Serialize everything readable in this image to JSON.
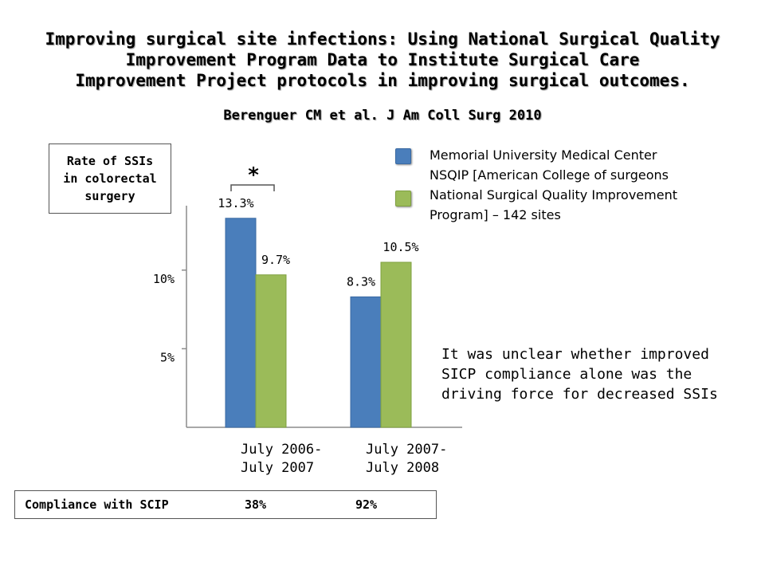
{
  "title": {
    "lines": [
      "Improving surgical site infections: Using National Surgical Quality",
      "Improvement Program Data to Institute Surgical Care",
      "Improvement Project protocols in improving surgical outcomes."
    ],
    "citation": "Berenguer CM et al. J Am Coll Surg 2010"
  },
  "y_axis_box": {
    "lines": [
      "Rate of SSIs",
      "in colorectal",
      "surgery"
    ]
  },
  "legend": {
    "entries": [
      {
        "lines": [
          "Memorial University Medical Center"
        ],
        "color": "#4a7ebb"
      },
      {
        "lines": [
          "NSQIP  [American College of surgeons",
          "National Surgical Quality Improvement",
          "Program] – 142 sites"
        ],
        "color": "#9bbb59"
      }
    ]
  },
  "significance_marker": "*",
  "note": {
    "lines": [
      "It was unclear whether improved",
      "SICP compliance alone was the",
      "driving force for decreased SSIs"
    ]
  },
  "compliance": {
    "label": "Compliance with SCIP",
    "values": [
      "38%",
      "92%"
    ]
  },
  "chart_data": {
    "type": "bar",
    "categories": [
      [
        "July 2006-",
        "July 2007"
      ],
      [
        "July 2007-",
        "July 2008"
      ]
    ],
    "series": [
      {
        "name": "Memorial University Medical Center",
        "color": "#4a7ebb",
        "values": [
          13.3,
          8.3
        ],
        "labels": [
          "13.3%",
          "8.3%"
        ]
      },
      {
        "name": "NSQIP",
        "color": "#9bbb59",
        "values": [
          9.7,
          10.5
        ],
        "labels": [
          "9.7%",
          "10.5%"
        ]
      }
    ],
    "ylim": [
      0,
      14.1
    ],
    "yticks": [
      {
        "value": 5,
        "label": "5%"
      },
      {
        "value": 10,
        "label": "10%"
      }
    ],
    "grid": false,
    "legend_position": "top-right"
  }
}
